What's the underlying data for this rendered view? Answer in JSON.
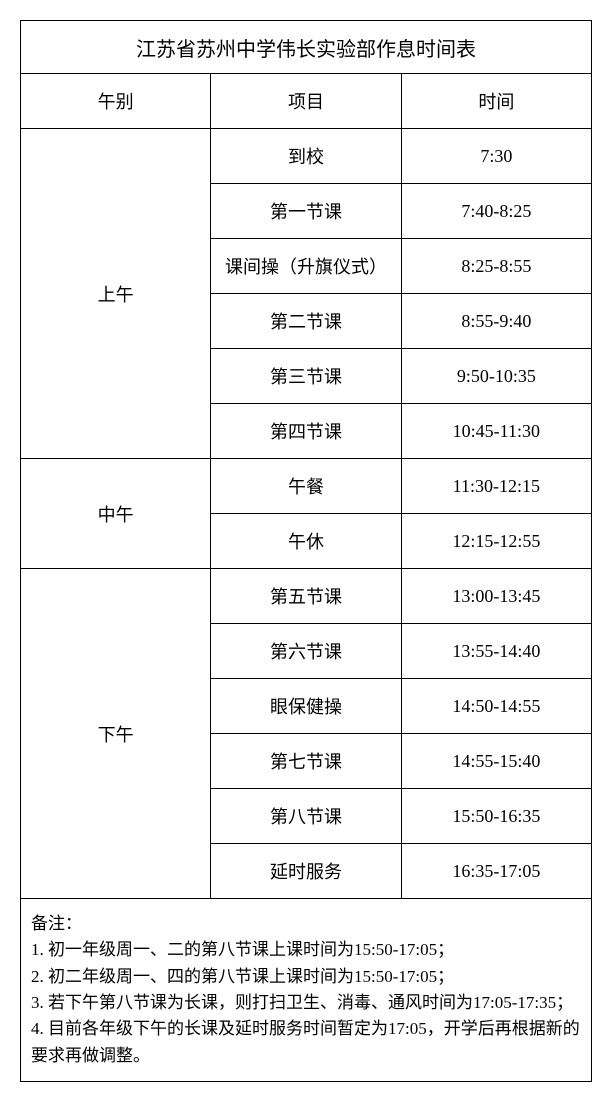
{
  "table": {
    "title": "江苏省苏州中学伟长实验部作息时间表",
    "title_fontsize": 20,
    "cell_fontsize": 18,
    "border_color": "#000000",
    "background_color": "#ffffff",
    "text_color": "#000000",
    "columns": {
      "period_label": "午别",
      "item_label": "项目",
      "time_label": "时间",
      "period_width": 110,
      "item_width": 240,
      "time_width": 222
    },
    "sections": [
      {
        "period": "上午",
        "rows": [
          {
            "item": "到校",
            "time": "7:30"
          },
          {
            "item": "第一节课",
            "time": "7:40-8:25"
          },
          {
            "item": "课间操（升旗仪式）",
            "time": "8:25-8:55"
          },
          {
            "item": "第二节课",
            "time": "8:55-9:40"
          },
          {
            "item": "第三节课",
            "time": "9:50-10:35"
          },
          {
            "item": "第四节课",
            "time": "10:45-11:30"
          }
        ]
      },
      {
        "period": "中午",
        "rows": [
          {
            "item": "午餐",
            "time": "11:30-12:15"
          },
          {
            "item": "午休",
            "time": "12:15-12:55"
          }
        ]
      },
      {
        "period": "下午",
        "rows": [
          {
            "item": "第五节课",
            "time": "13:00-13:45"
          },
          {
            "item": "第六节课",
            "time": "13:55-14:40"
          },
          {
            "item": "眼保健操",
            "time": "14:50-14:55"
          },
          {
            "item": "第七节课",
            "time": "14:55-15:40"
          },
          {
            "item": "第八节课",
            "time": "15:50-16:35"
          },
          {
            "item": "延时服务",
            "time": "16:35-17:05"
          }
        ]
      }
    ],
    "notes": {
      "heading": "备注：",
      "items": [
        "1. 初一年级周一、二的第八节课上课时间为15:50-17:05；",
        "2. 初二年级周一、四的第八节课上课时间为15:50-17:05；",
        "3. 若下午第八节课为长课，则打扫卫生、消毒、通风时间为17:05-17:35；",
        "4. 目前各年级下午的长课及延时服务时间暂定为17:05，开学后再根据新的要求再做调整。"
      ]
    }
  }
}
